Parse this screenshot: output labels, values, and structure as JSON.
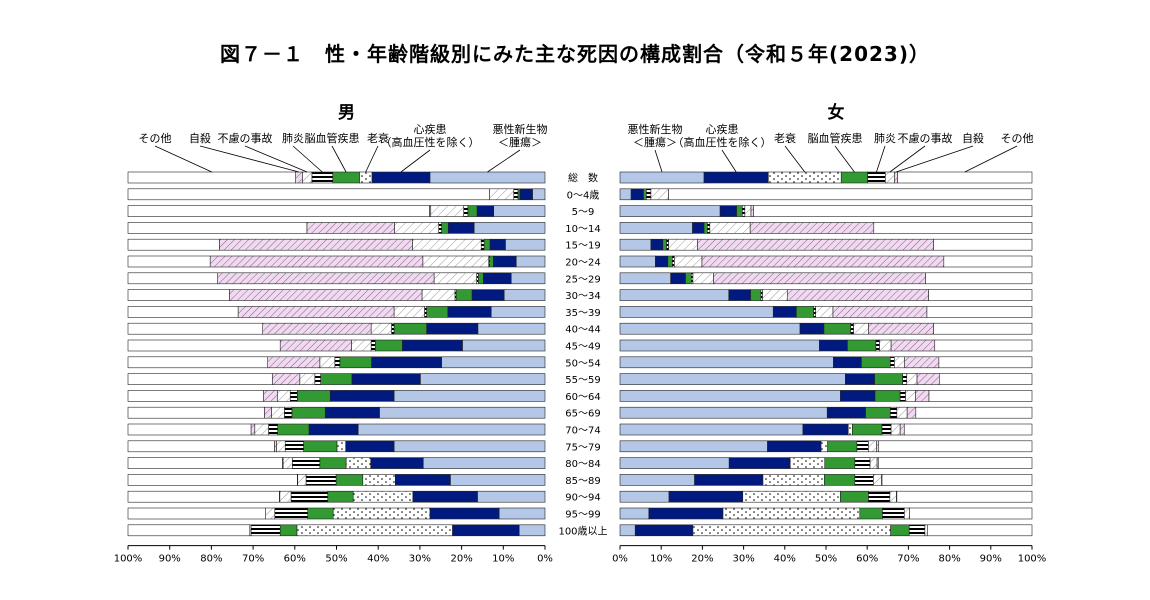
{
  "title": "図７－１　性・年齢階級別にみた主な死因の構成割合（令和５年(2023)）",
  "colors": {
    "悪性新生物": "#b4c7e7",
    "心疾患": "#001a80",
    "老衰": "#ffffff",
    "脳血管疾患": "#339933",
    "肺炎": "#ffffff",
    "不慮の事故": "#ffffff",
    "自殺": "#e6d0ec",
    "その他": "#ffffff"
  },
  "chart_data": {
    "type": "bar",
    "orientation": "horizontal-stacked",
    "categories": [
      "総　数",
      "0～4歳",
      "5～9",
      "10～14",
      "15～19",
      "20～24",
      "25～29",
      "30～34",
      "35～39",
      "40～44",
      "45～49",
      "50～54",
      "55～59",
      "60～64",
      "65～69",
      "70～74",
      "75～79",
      "80～84",
      "85～89",
      "90～94",
      "95～99",
      "100歳以上"
    ],
    "tick_labels": [
      "100%",
      "90%",
      "80%",
      "70%",
      "60%",
      "50%",
      "40%",
      "30%",
      "20%",
      "10%",
      "0%",
      "10%",
      "20%",
      "30%",
      "40%",
      "50%",
      "60%",
      "70%",
      "80%",
      "90%",
      "100%"
    ],
    "panels": [
      {
        "title": "男",
        "direction": "right-to-left",
        "series_order": [
          "悪性新生物",
          "心疾患",
          "老衰",
          "脳血管疾患",
          "肺炎",
          "不慮の事故",
          "自殺",
          "その他"
        ],
        "legend": [
          {
            "name": "その他",
            "label": "その他"
          },
          {
            "name": "自殺",
            "label": "自殺"
          },
          {
            "name": "不慮の事故",
            "label": "不慮の事故"
          },
          {
            "name": "肺炎",
            "label": "肺炎"
          },
          {
            "name": "脳血管疾患",
            "label": "脳血管疾患"
          },
          {
            "name": "老衰",
            "label": "老衰"
          },
          {
            "name": "心疾患",
            "label": "心疾患\n（高血圧性を除く）"
          },
          {
            "name": "悪性新生物",
            "label": "悪性新生物\n＜腫瘍＞"
          }
        ],
        "values": [
          [
            27.6,
            13.9,
            3.0,
            6.4,
            5.0,
            2.3,
            1.6,
            40.2
          ],
          [
            3.0,
            3.0,
            0,
            0.5,
            1.0,
            5.8,
            0,
            86.7
          ],
          [
            12.3,
            4.0,
            0,
            2.2,
            1.0,
            7.9,
            0.3,
            72.3
          ],
          [
            17.0,
            6.2,
            0,
            1.6,
            0.7,
            10.6,
            21.0,
            42.9
          ],
          [
            9.5,
            3.7,
            0,
            1.4,
            0.7,
            16.5,
            46.3,
            21.9
          ],
          [
            6.9,
            5.5,
            0,
            0.9,
            0.2,
            15.8,
            51.0,
            19.7
          ],
          [
            8.1,
            6.7,
            0,
            1.2,
            0.4,
            10.2,
            51.9,
            21.5
          ],
          [
            9.8,
            7.7,
            0,
            3.8,
            0.3,
            7.9,
            46.2,
            24.3
          ],
          [
            12.9,
            10.4,
            0,
            5.1,
            0.5,
            7.3,
            37.4,
            26.4
          ],
          [
            16.1,
            12.3,
            0,
            7.8,
            0.6,
            4.9,
            26.0,
            32.3
          ],
          [
            19.8,
            14.4,
            0,
            6.5,
            1.0,
            4.7,
            17.1,
            36.5
          ],
          [
            24.8,
            16.8,
            0,
            7.6,
            1.2,
            3.6,
            12.5,
            33.5
          ],
          [
            29.9,
            16.4,
            0,
            7.5,
            1.4,
            3.6,
            6.6,
            34.6
          ],
          [
            36.2,
            15.3,
            0,
            7.9,
            1.7,
            3.1,
            3.3,
            32.5
          ],
          [
            39.7,
            13.0,
            0,
            8.0,
            1.8,
            3.1,
            1.7,
            32.7
          ],
          [
            44.8,
            11.8,
            0,
            7.5,
            2.2,
            3.3,
            0.9,
            29.5
          ],
          [
            36.2,
            11.6,
            2.1,
            8.0,
            4.4,
            2.1,
            0.5,
            35.1
          ],
          [
            29.2,
            12.6,
            5.9,
            6.3,
            6.6,
            2.2,
            0.2,
            37.0
          ],
          [
            22.7,
            13.2,
            7.8,
            6.4,
            7.2,
            2.0,
            0.1,
            40.6
          ],
          [
            16.2,
            15.5,
            14.3,
            6.1,
            8.8,
            2.7,
            0.1,
            36.3
          ],
          [
            11.0,
            16.6,
            23.2,
            6.1,
            7.9,
            2.2,
            0,
            33.0
          ],
          [
            6.2,
            16.0,
            37.3,
            4.0,
            7.0,
            0.3,
            0,
            29.2
          ]
        ]
      },
      {
        "title": "女",
        "direction": "left-to-right",
        "series_order": [
          "悪性新生物",
          "心疾患",
          "老衰",
          "脳血管疾患",
          "肺炎",
          "不慮の事故",
          "自殺",
          "その他"
        ],
        "legend": [
          {
            "name": "悪性新生物",
            "label": "悪性新生物\n＜腫瘍＞"
          },
          {
            "name": "心疾患",
            "label": "心疾患\n（高血圧性を除く）"
          },
          {
            "name": "老衰",
            "label": "老衰"
          },
          {
            "name": "脳血管疾患",
            "label": "脳血管疾患"
          },
          {
            "name": "肺炎",
            "label": "肺炎"
          },
          {
            "name": "不慮の事故",
            "label": "不慮の事故"
          },
          {
            "name": "自殺",
            "label": "自殺"
          },
          {
            "name": "その他",
            "label": "その他"
          }
        ],
        "values": [
          [
            20.4,
            15.6,
            17.7,
            6.4,
            4.3,
            2.2,
            0.8,
            32.6
          ],
          [
            2.7,
            3.0,
            0,
            0.7,
            1.1,
            4.3,
            0,
            88.2
          ],
          [
            24.3,
            4.0,
            0,
            1.4,
            0.6,
            1.5,
            0.6,
            67.6
          ],
          [
            17.6,
            2.8,
            0,
            0.8,
            0.6,
            9.8,
            30.0,
            38.4
          ],
          [
            7.5,
            2.9,
            0,
            0.9,
            0.5,
            7.0,
            57.3,
            23.9
          ],
          [
            8.6,
            3.0,
            0,
            1.1,
            0.5,
            6.7,
            58.7,
            21.4
          ],
          [
            12.3,
            3.6,
            0,
            1.4,
            0.4,
            5.0,
            51.5,
            25.8
          ],
          [
            26.4,
            5.3,
            0,
            2.5,
            0.4,
            6.0,
            34.3,
            25.1
          ],
          [
            37.2,
            5.6,
            0,
            4.2,
            0.5,
            4.2,
            22.8,
            25.5
          ],
          [
            43.7,
            5.8,
            0,
            6.5,
            0.7,
            3.6,
            15.8,
            23.9
          ],
          [
            48.4,
            6.8,
            0,
            6.9,
            0.9,
            2.8,
            10.6,
            23.6
          ],
          [
            51.8,
            6.8,
            0,
            7.0,
            1.0,
            2.5,
            8.3,
            22.6
          ],
          [
            54.7,
            7.1,
            0,
            6.8,
            1.0,
            2.5,
            5.4,
            22.5
          ],
          [
            53.5,
            8.4,
            0,
            6.1,
            1.3,
            2.4,
            3.3,
            25.0
          ],
          [
            50.3,
            9.3,
            0,
            6.0,
            1.6,
            2.5,
            2.1,
            28.2
          ],
          [
            44.4,
            11.0,
            1.0,
            7.2,
            2.2,
            2.2,
            1.0,
            31.0
          ],
          [
            35.8,
            13.0,
            1.6,
            7.1,
            2.8,
            2.0,
            0.5,
            37.2
          ],
          [
            26.5,
            14.8,
            8.4,
            7.3,
            3.7,
            1.7,
            0.3,
            37.3
          ],
          [
            18.1,
            16.6,
            14.9,
            7.4,
            4.5,
            2.0,
            0.1,
            36.4
          ],
          [
            11.9,
            17.9,
            23.7,
            6.8,
            5.2,
            1.6,
            0.1,
            32.8
          ],
          [
            7.0,
            18.0,
            33.2,
            5.5,
            5.3,
            1.3,
            0,
            29.7
          ],
          [
            3.7,
            14.0,
            48.0,
            4.5,
            3.8,
            0.6,
            0,
            25.4
          ]
        ]
      }
    ]
  }
}
